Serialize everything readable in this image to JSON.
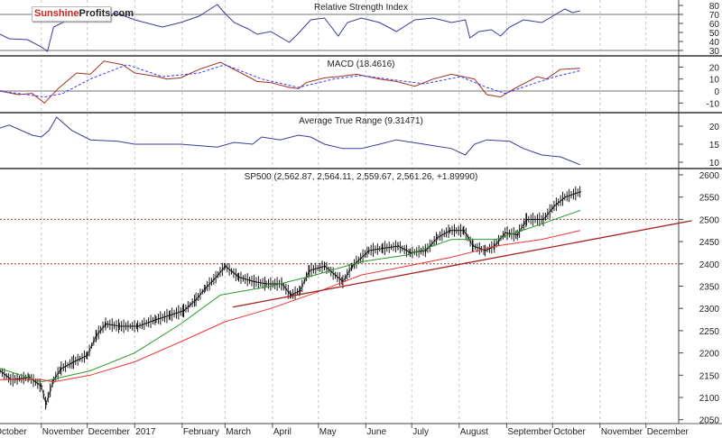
{
  "logo": {
    "part1": "Sunshine",
    "part2": "Profits.com"
  },
  "colors": {
    "rsi": "#3a3a9a",
    "macd": "#a03020",
    "signal": "#3a3aff",
    "atr": "#3a3a9a",
    "price": "#000000",
    "ma_short": "#2a9a2a",
    "ma_long": "#ee3333",
    "trend": "#aa2020",
    "level": "#993333"
  },
  "chart_data": [
    {
      "type": "line",
      "title": "Relative Strength Index",
      "yticks": [
        80,
        70,
        60,
        50,
        40,
        30
      ],
      "ylim": [
        22,
        86
      ],
      "reference_lines": [
        70,
        30
      ],
      "series": [
        {
          "points": [
            [
              "2016-10-05",
              48
            ],
            [
              "2016-10-11",
              43
            ],
            [
              "2016-10-23",
              42
            ],
            [
              "2016-11-01",
              34
            ],
            [
              "2016-11-05",
              29
            ],
            [
              "2016-11-09",
              56
            ],
            [
              "2016-11-15",
              61
            ],
            [
              "2016-11-27",
              69
            ],
            [
              "2016-12-21",
              71
            ],
            [
              "2017-01-01",
              64
            ],
            [
              "2017-01-19",
              56
            ],
            [
              "2017-01-31",
              61
            ],
            [
              "2017-02-12",
              68
            ],
            [
              "2017-02-24",
              81
            ],
            [
              "2017-03-01",
              71
            ],
            [
              "2017-03-07",
              61
            ],
            [
              "2017-03-16",
              54
            ],
            [
              "2017-03-22",
              48
            ],
            [
              "2017-03-31",
              51
            ],
            [
              "2017-04-12",
              39
            ],
            [
              "2017-04-18",
              49
            ],
            [
              "2017-04-26",
              64
            ],
            [
              "2017-05-05",
              66
            ],
            [
              "2017-05-14",
              46
            ],
            [
              "2017-05-20",
              61
            ],
            [
              "2017-05-29",
              66
            ],
            [
              "2017-06-10",
              61
            ],
            [
              "2017-06-21",
              51
            ],
            [
              "2017-07-03",
              64
            ],
            [
              "2017-07-15",
              66
            ],
            [
              "2017-07-27",
              61
            ],
            [
              "2017-08-05",
              64
            ],
            [
              "2017-08-08",
              44
            ],
            [
              "2017-08-14",
              51
            ],
            [
              "2017-08-22",
              53
            ],
            [
              "2017-08-28",
              46
            ],
            [
              "2017-09-03",
              56
            ],
            [
              "2017-09-12",
              64
            ],
            [
              "2017-09-24",
              61
            ],
            [
              "2017-10-03",
              70
            ],
            [
              "2017-10-09",
              76
            ],
            [
              "2017-10-14",
              72
            ],
            [
              "2017-10-19",
              74
            ]
          ]
        }
      ]
    },
    {
      "type": "line",
      "title": "MACD (18.4616)",
      "yticks": [
        20,
        10,
        0,
        -10
      ],
      "reference_lines": [
        0
      ],
      "series": [
        {
          "points": [
            [
              "2016-10-05",
              0
            ],
            [
              "2016-10-17",
              -3
            ],
            [
              "2016-10-26",
              -2
            ],
            [
              "2016-11-03",
              -10
            ],
            [
              "2016-11-12",
              2
            ],
            [
              "2016-11-24",
              15
            ],
            [
              "2016-12-03",
              14
            ],
            [
              "2016-12-12",
              25
            ],
            [
              "2016-12-24",
              22
            ],
            [
              "2017-01-01",
              15
            ],
            [
              "2017-01-16",
              12
            ],
            [
              "2017-01-22",
              10
            ],
            [
              "2017-01-31",
              11
            ],
            [
              "2017-02-12",
              18
            ],
            [
              "2017-02-26",
              24
            ],
            [
              "2017-03-07",
              18
            ],
            [
              "2017-03-22",
              8
            ],
            [
              "2017-03-31",
              7
            ],
            [
              "2017-04-12",
              3
            ],
            [
              "2017-04-18",
              2
            ],
            [
              "2017-04-23",
              7
            ],
            [
              "2017-05-05",
              11
            ],
            [
              "2017-05-14",
              12
            ],
            [
              "2017-05-26",
              14
            ],
            [
              "2017-06-10",
              10
            ],
            [
              "2017-06-21",
              8
            ],
            [
              "2017-07-03",
              4
            ],
            [
              "2017-07-15",
              10
            ],
            [
              "2017-07-27",
              14
            ],
            [
              "2017-08-11",
              10
            ],
            [
              "2017-08-19",
              -3
            ],
            [
              "2017-08-28",
              -5
            ],
            [
              "2017-09-06",
              2
            ],
            [
              "2017-09-21",
              12
            ],
            [
              "2017-09-27",
              10
            ],
            [
              "2017-10-06",
              18
            ],
            [
              "2017-10-19",
              19
            ]
          ]
        },
        {
          "style": "dashed",
          "points": [
            [
              "2016-10-05",
              0
            ],
            [
              "2016-11-03",
              -5
            ],
            [
              "2016-11-15",
              -2
            ],
            [
              "2016-12-03",
              10
            ],
            [
              "2016-12-27",
              22
            ],
            [
              "2017-01-19",
              12
            ],
            [
              "2017-02-12",
              15
            ],
            [
              "2017-03-01",
              22
            ],
            [
              "2017-03-25",
              10
            ],
            [
              "2017-04-18",
              3
            ],
            [
              "2017-05-11",
              10
            ],
            [
              "2017-05-29",
              13
            ],
            [
              "2017-06-21",
              9
            ],
            [
              "2017-07-09",
              6
            ],
            [
              "2017-08-02",
              12
            ],
            [
              "2017-08-19",
              3
            ],
            [
              "2017-08-31",
              -2
            ],
            [
              "2017-09-18",
              6
            ],
            [
              "2017-10-03",
              12
            ],
            [
              "2017-10-19",
              17
            ]
          ]
        }
      ]
    },
    {
      "type": "line",
      "title": "Average True Range (9.31471)",
      "yticks": [
        20,
        15,
        10
      ],
      "series": [
        {
          "points": [
            [
              "2016-10-05",
              19.5
            ],
            [
              "2016-10-11",
              20.3
            ],
            [
              "2016-10-26",
              17.5
            ],
            [
              "2016-11-01",
              17
            ],
            [
              "2016-11-06",
              18.8
            ],
            [
              "2016-11-11",
              22.5
            ],
            [
              "2016-11-21",
              18.8
            ],
            [
              "2016-12-03",
              16.2
            ],
            [
              "2016-12-21",
              15.8
            ],
            [
              "2017-01-01",
              15
            ],
            [
              "2017-01-31",
              15
            ],
            [
              "2017-02-24",
              14.2
            ],
            [
              "2017-03-07",
              15.5
            ],
            [
              "2017-03-19",
              15
            ],
            [
              "2017-03-25",
              17
            ],
            [
              "2017-04-06",
              16.2
            ],
            [
              "2017-04-18",
              17.5
            ],
            [
              "2017-04-26",
              17
            ],
            [
              "2017-05-05",
              15
            ],
            [
              "2017-05-17",
              13.8
            ],
            [
              "2017-05-29",
              13.8
            ],
            [
              "2017-06-10",
              15
            ],
            [
              "2017-06-21",
              16.2
            ],
            [
              "2017-07-09",
              15
            ],
            [
              "2017-07-27",
              13.8
            ],
            [
              "2017-08-05",
              12
            ],
            [
              "2017-08-11",
              15
            ],
            [
              "2017-08-19",
              16.2
            ],
            [
              "2017-09-03",
              15.8
            ],
            [
              "2017-09-12",
              13.8
            ],
            [
              "2017-09-24",
              12
            ],
            [
              "2017-10-06",
              11.5
            ],
            [
              "2017-10-19",
              9.3
            ]
          ]
        }
      ]
    },
    {
      "type": "line",
      "title": "SP500 (2,562.87, 2,564.11, 2,559.67, 2,561.26, +1.89990)",
      "yticks": [
        2600,
        2550,
        2500,
        2450,
        2400,
        2350,
        2300,
        2250,
        2200,
        2150,
        2100,
        2050
      ],
      "reference_lines": [
        2500,
        2400
      ],
      "xticks": [
        "October",
        "November",
        "December",
        "2017",
        "February",
        "March",
        "April",
        "May",
        "June",
        "July",
        "August",
        "September",
        "October",
        "November",
        "December"
      ],
      "xtick_dates": [
        "2016-10-01",
        "2016-11-01",
        "2016-12-01",
        "2017-01-01",
        "2017-02-01",
        "2017-03-01",
        "2017-04-01",
        "2017-05-01",
        "2017-06-01",
        "2017-07-01",
        "2017-08-01",
        "2017-09-01",
        "2017-10-01",
        "2017-11-01",
        "2017-12-01"
      ],
      "series": [
        {
          "style": "bars",
          "points": [
            [
              "2016-10-05",
              2160
            ],
            [
              "2016-10-12",
              2140
            ],
            [
              "2016-10-24",
              2145
            ],
            [
              "2016-11-01",
              2125
            ],
            [
              "2016-11-04",
              2085
            ],
            [
              "2016-11-09",
              2140
            ],
            [
              "2016-11-14",
              2165
            ],
            [
              "2016-11-22",
              2180
            ],
            [
              "2016-12-01",
              2195
            ],
            [
              "2016-12-07",
              2240
            ],
            [
              "2016-12-13",
              2265
            ],
            [
              "2016-12-22",
              2260
            ],
            [
              "2017-01-03",
              2260
            ],
            [
              "2017-01-15",
              2275
            ],
            [
              "2017-01-24",
              2285
            ],
            [
              "2017-02-02",
              2295
            ],
            [
              "2017-02-10",
              2320
            ],
            [
              "2017-02-16",
              2345
            ],
            [
              "2017-02-23",
              2370
            ],
            [
              "2017-03-01",
              2395
            ],
            [
              "2017-03-10",
              2370
            ],
            [
              "2017-03-20",
              2360
            ],
            [
              "2017-03-28",
              2355
            ],
            [
              "2017-04-07",
              2355
            ],
            [
              "2017-04-13",
              2330
            ],
            [
              "2017-04-19",
              2340
            ],
            [
              "2017-04-25",
              2385
            ],
            [
              "2017-05-05",
              2395
            ],
            [
              "2017-05-17",
              2360
            ],
            [
              "2017-05-23",
              2395
            ],
            [
              "2017-06-03",
              2430
            ],
            [
              "2017-06-12",
              2435
            ],
            [
              "2017-06-22",
              2440
            ],
            [
              "2017-06-30",
              2425
            ],
            [
              "2017-07-10",
              2430
            ],
            [
              "2017-07-18",
              2460
            ],
            [
              "2017-07-26",
              2475
            ],
            [
              "2017-08-04",
              2475
            ],
            [
              "2017-08-10",
              2440
            ],
            [
              "2017-08-18",
              2430
            ],
            [
              "2017-08-24",
              2440
            ],
            [
              "2017-08-31",
              2470
            ],
            [
              "2017-09-08",
              2465
            ],
            [
              "2017-09-14",
              2500
            ],
            [
              "2017-09-25",
              2500
            ],
            [
              "2017-10-02",
              2530
            ],
            [
              "2017-10-09",
              2550
            ],
            [
              "2017-10-19",
              2562
            ]
          ]
        },
        {
          "style": "ma_short",
          "points": [
            [
              "2016-10-05",
              2165
            ],
            [
              "2016-11-01",
              2135
            ],
            [
              "2016-12-03",
              2160
            ],
            [
              "2017-01-01",
              2200
            ],
            [
              "2017-01-31",
              2265
            ],
            [
              "2017-02-26",
              2330
            ],
            [
              "2017-03-31",
              2350
            ],
            [
              "2017-04-29",
              2375
            ],
            [
              "2017-05-29",
              2405
            ],
            [
              "2017-06-28",
              2420
            ],
            [
              "2017-07-27",
              2455
            ],
            [
              "2017-08-25",
              2455
            ],
            [
              "2017-09-24",
              2490
            ],
            [
              "2017-10-19",
              2520
            ]
          ]
        },
        {
          "style": "ma_long",
          "points": [
            [
              "2016-10-05",
              2140
            ],
            [
              "2016-11-01",
              2140
            ],
            [
              "2016-11-09",
              2135
            ],
            [
              "2016-12-03",
              2150
            ],
            [
              "2017-01-01",
              2180
            ],
            [
              "2017-01-31",
              2225
            ],
            [
              "2017-03-01",
              2270
            ],
            [
              "2017-03-31",
              2300
            ],
            [
              "2017-04-29",
              2335
            ],
            [
              "2017-05-29",
              2375
            ],
            [
              "2017-06-28",
              2395
            ],
            [
              "2017-07-27",
              2415
            ],
            [
              "2017-08-25",
              2440
            ],
            [
              "2017-09-24",
              2455
            ],
            [
              "2017-10-19",
              2475
            ]
          ]
        },
        {
          "style": "trend",
          "points": [
            [
              "2017-03-06",
              2303
            ],
            [
              "2017-12-31",
              2497
            ]
          ]
        }
      ]
    }
  ]
}
